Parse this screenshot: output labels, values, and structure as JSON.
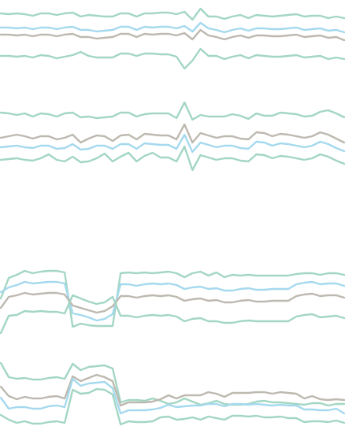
{
  "chart_data": {
    "type": "line",
    "title": "",
    "xlabel": "",
    "ylabel": "",
    "grid": false,
    "legend": "none",
    "x": [
      0,
      1,
      2,
      3,
      4,
      5,
      6,
      7,
      8,
      9,
      10,
      11,
      12,
      13,
      14,
      15,
      16,
      17,
      18,
      19,
      20,
      21,
      22,
      23,
      24,
      25,
      26,
      27,
      28,
      29,
      30,
      31,
      32,
      33,
      34,
      35,
      36,
      37,
      38,
      39,
      40,
      41,
      42,
      43
    ],
    "ylim": [
      0,
      541
    ],
    "colors": {
      "green": "#a3d6c4",
      "blue": "#a5d9ee",
      "gray": "#bdb9b0"
    },
    "panels": [
      {
        "series": [
          {
            "color": "green",
            "values": [
              524,
              523,
              524,
              523,
              521,
              524,
              524,
              522,
              524,
              525,
              520,
              522,
              521,
              520,
              520,
              524,
              524,
              520,
              524,
              524,
              525,
              525,
              523,
              526,
              516,
              530,
              520,
              520,
              517,
              520,
              522,
              518,
              522,
              521,
              520,
              521,
              522,
              523,
              520,
              521,
              521,
              518,
              520,
              518
            ]
          },
          {
            "color": "blue",
            "values": [
              506,
              506,
              505,
              506,
              504,
              506,
              506,
              504,
              506,
              507,
              503,
              503,
              501,
              502,
              503,
              507,
              507,
              503,
              507,
              506,
              507,
              507,
              505,
              508,
              501,
              512,
              505,
              503,
              500,
              503,
              505,
              502,
              505,
              505,
              504,
              504,
              505,
              506,
              503,
              504,
              505,
              502,
              503,
              500
            ]
          },
          {
            "color": "gray",
            "values": [
              497,
              497,
              496,
              497,
              495,
              497,
              497,
              495,
              497,
              498,
              494,
              494,
              492,
              493,
              494,
              498,
              498,
              494,
              498,
              497,
              498,
              498,
              496,
              499,
              491,
              503,
              496,
              494,
              491,
              494,
              496,
              493,
              496,
              496,
              495,
              495,
              496,
              497,
              494,
              495,
              496,
              493,
              494,
              490
            ]
          },
          {
            "color": "green",
            "values": [
              470,
              470,
              469,
              470,
              468,
              471,
              470,
              467,
              469,
              471,
              475,
              470,
              468,
              468,
              468,
              473,
              473,
              470,
              473,
              473,
              472,
              472,
              469,
              454,
              464,
              479,
              470,
              470,
              466,
              469,
              471,
              467,
              471,
              470,
              469,
              469,
              470,
              471,
              468,
              469,
              470,
              466,
              468,
              466
            ]
          }
        ]
      },
      {
        "series": [
          {
            "color": "green",
            "values": [
              398,
              397,
              395,
              397,
              393,
              397,
              396,
              393,
              397,
              398,
              392,
              393,
              391,
              392,
              393,
              398,
              398,
              393,
              396,
              397,
              397,
              397,
              391,
              411,
              389,
              395,
              393,
              393,
              393,
              396,
              394,
              390,
              397,
              394,
              394,
              398,
              397,
              396,
              393,
              394,
              399,
              401,
              397,
              392
            ]
          },
          {
            "color": "gray",
            "values": [
              366,
              368,
              370,
              368,
              365,
              368,
              368,
              364,
              366,
              370,
              360,
              365,
              369,
              368,
              362,
              369,
              370,
              364,
              371,
              370,
              369,
              369,
              364,
              383,
              360,
              372,
              369,
              366,
              368,
              368,
              365,
              364,
              373,
              372,
              368,
              371,
              370,
              368,
              366,
              368,
              373,
              370,
              365,
              360
            ]
          },
          {
            "color": "blue",
            "values": [
              354,
              355,
              356,
              354,
              353,
              356,
              356,
              352,
              353,
              358,
              351,
              352,
              356,
              356,
              352,
              358,
              358,
              352,
              359,
              358,
              357,
              357,
              352,
              370,
              348,
              360,
              357,
              354,
              356,
              356,
              353,
              352,
              361,
              360,
              356,
              359,
              358,
              356,
              354,
              356,
              361,
              358,
              353,
              349
            ]
          },
          {
            "color": "green",
            "values": [
              338,
              339,
              340,
              338,
              337,
              340,
              345,
              338,
              336,
              342,
              335,
              336,
              340,
              346,
              336,
              342,
              347,
              336,
              343,
              347,
              341,
              341,
              336,
              355,
              325,
              344,
              341,
              338,
              340,
              340,
              337,
              336,
              345,
              344,
              340,
              343,
              342,
              340,
              338,
              340,
              345,
              342,
              337,
              333
            ]
          }
        ]
      },
      {
        "series": [
          {
            "color": "green",
            "values": [
              162,
              188,
              192,
              197,
              194,
              196,
              197,
              197,
              195,
              126,
              130,
              128,
              127,
              127,
              127,
              194,
              195,
              194,
              195,
              194,
              195,
              196,
              194,
              189,
              194,
              196,
              191,
              195,
              189,
              192,
              191,
              192,
              191,
              191,
              191,
              191,
              191,
              193,
              194,
              194,
              192,
              194,
              194,
              192
            ]
          },
          {
            "color": "blue",
            "values": [
              170,
              176,
              179,
              183,
              181,
              182,
              183,
              183,
              181,
              143,
              141,
              138,
              134,
              136,
              142,
              180,
              180,
              178,
              180,
              181,
              180,
              181,
              179,
              174,
              176,
              177,
              174,
              175,
              172,
              172,
              174,
              175,
              173,
              173,
              174,
              174,
              174,
              180,
              182,
              183,
              180,
              181,
              181,
              178
            ]
          },
          {
            "color": "gray",
            "values": [
              150,
              164,
              166,
              169,
              167,
              168,
              169,
              169,
              167,
              153,
              150,
              147,
              144,
              146,
              152,
              165,
              165,
              163,
              165,
              166,
              165,
              166,
              164,
              159,
              161,
              162,
              159,
              160,
              157,
              157,
              159,
              160,
              158,
              158,
              159,
              159,
              159,
              165,
              167,
              168,
              165,
              166,
              166,
              163
            ]
          },
          {
            "color": "green",
            "values": [
              118,
              140,
              141,
              146,
              145,
              146,
              145,
              145,
              143,
              166,
              162,
              158,
              155,
              157,
              164,
              140,
              140,
              138,
              140,
              141,
              140,
              141,
              139,
              133,
              136,
              137,
              133,
              133,
              131,
              131,
              133,
              134,
              133,
              133,
              133,
              133,
              133,
              139,
              141,
              142,
              138,
              139,
              140,
              137
            ]
          },
          {
            "color": "green",
            "values": [
              80,
              62,
              60,
              61,
              59,
              59,
              61,
              62,
              60,
              79,
              71,
              75,
              76,
              77,
              73,
              30,
              33,
              33,
              32,
              35,
              32,
              28,
              30,
              35,
              31,
              27,
              29,
              32,
              28,
              27,
              27,
              28,
              31,
              32,
              30,
              30,
              29,
              28,
              27,
              29,
              29,
              26,
              28,
              28
            ]
          },
          {
            "color": "gray",
            "values": [
              50,
              38,
              34,
              37,
              35,
              35,
              37,
              38,
              35,
              63,
              57,
              61,
              65,
              62,
              57,
              26,
              30,
              30,
              30,
              31,
              34,
              39,
              35,
              39,
              39,
              39,
              43,
              41,
              37,
              42,
              42,
              42,
              43,
              43,
              41,
              43,
              42,
              41,
              35,
              38,
              34,
              33,
              34,
              33
            ]
          },
          {
            "color": "blue",
            "values": [
              36,
              22,
              24,
              24,
              22,
              22,
              25,
              26,
              24,
              60,
              51,
              54,
              55,
              56,
              48,
              16,
              20,
              20,
              20,
              21,
              23,
              27,
              24,
              25,
              26,
              26,
              28,
              28,
              25,
              28,
              28,
              27,
              28,
              27,
              26,
              27,
              26,
              26,
              21,
              21,
              20,
              20,
              22,
              16
            ]
          },
          {
            "color": "green",
            "values": [
              14,
              8,
              4,
              6,
              3,
              3,
              5,
              6,
              4,
              46,
              41,
              42,
              47,
              46,
              40,
              2,
              6,
              5,
              5,
              6,
              11,
              12,
              8,
              9,
              11,
              8,
              12,
              10,
              8,
              13,
              13,
              12,
              13,
              11,
              11,
              12,
              10,
              10,
              5,
              6,
              6,
              5,
              7,
              4
            ]
          }
        ]
      }
    ]
  }
}
